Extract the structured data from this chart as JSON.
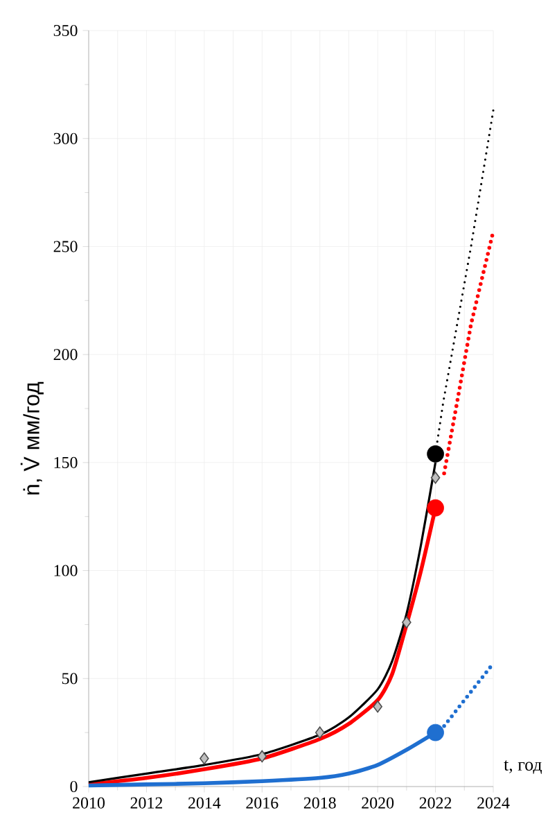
{
  "chart_data": {
    "type": "line",
    "xlabel": "t, год",
    "ylabel": "ṅ, V̇ мм/год",
    "xlim": [
      2010,
      2024
    ],
    "ylim": [
      0,
      350
    ],
    "xticks": [
      2010,
      2012,
      2014,
      2016,
      2018,
      2020,
      2022,
      2024
    ],
    "yticks": [
      0,
      50,
      100,
      150,
      200,
      250,
      300,
      350
    ],
    "grid": true,
    "series": [
      {
        "color": "#ff0000",
        "marker": "none",
        "line_style": "solid",
        "x": [
          2010,
          2012,
          2014,
          2016,
          2018,
          2019,
          2020,
          2020.5,
          2021,
          2021.5,
          2022
        ],
        "values": [
          1,
          4,
          8,
          13,
          22,
          29,
          40,
          52,
          75,
          100,
          129
        ]
      },
      {
        "color": "#000000",
        "marker": "none",
        "line_style": "solid",
        "x": [
          2010,
          2012,
          2014,
          2016,
          2018,
          2019,
          2020,
          2020.5,
          2021,
          2021.5,
          2022
        ],
        "values": [
          2,
          6,
          10,
          15,
          24,
          32,
          45,
          58,
          80,
          112,
          150
        ]
      },
      {
        "color": "#1f6fd0",
        "marker": "none",
        "line_style": "solid",
        "x": [
          2010,
          2012,
          2014,
          2016,
          2018,
          2019,
          2020,
          2021,
          2022
        ],
        "values": [
          0.5,
          1,
          1.5,
          2.5,
          4,
          6,
          10,
          17,
          25
        ]
      },
      {
        "color": "#000000",
        "marker": "none",
        "line_style": "dotted",
        "x": [
          2022,
          2022.27,
          2023.23,
          2024
        ],
        "values": [
          154,
          178,
          250,
          313
        ]
      },
      {
        "color": "#ff0000",
        "marker": "none",
        "line_style": "dotted",
        "x": [
          2022.3,
          2022.75,
          2023.23,
          2024
        ],
        "values": [
          145,
          178,
          214,
          257
        ]
      },
      {
        "color": "#1f6fd0",
        "marker": "none",
        "line_style": "dotted",
        "x": [
          2022.3,
          2023,
          2024
        ],
        "values": [
          28,
          40,
          57
        ]
      },
      {
        "type": "scatter",
        "color": "#bfbfbf",
        "marker": "diamond",
        "x": [
          2014,
          2016,
          2018,
          2020,
          2021,
          2022
        ],
        "values": [
          13,
          14,
          25,
          37,
          76,
          143
        ]
      },
      {
        "type": "scatter",
        "color": "#000000",
        "marker": "circle",
        "x": [
          2022
        ],
        "values": [
          154
        ]
      },
      {
        "type": "scatter",
        "color": "#ff0000",
        "marker": "circle",
        "x": [
          2022
        ],
        "values": [
          129
        ]
      },
      {
        "type": "scatter",
        "color": "#1f6fd0",
        "marker": "circle",
        "x": [
          2022
        ],
        "values": [
          25
        ]
      }
    ]
  }
}
